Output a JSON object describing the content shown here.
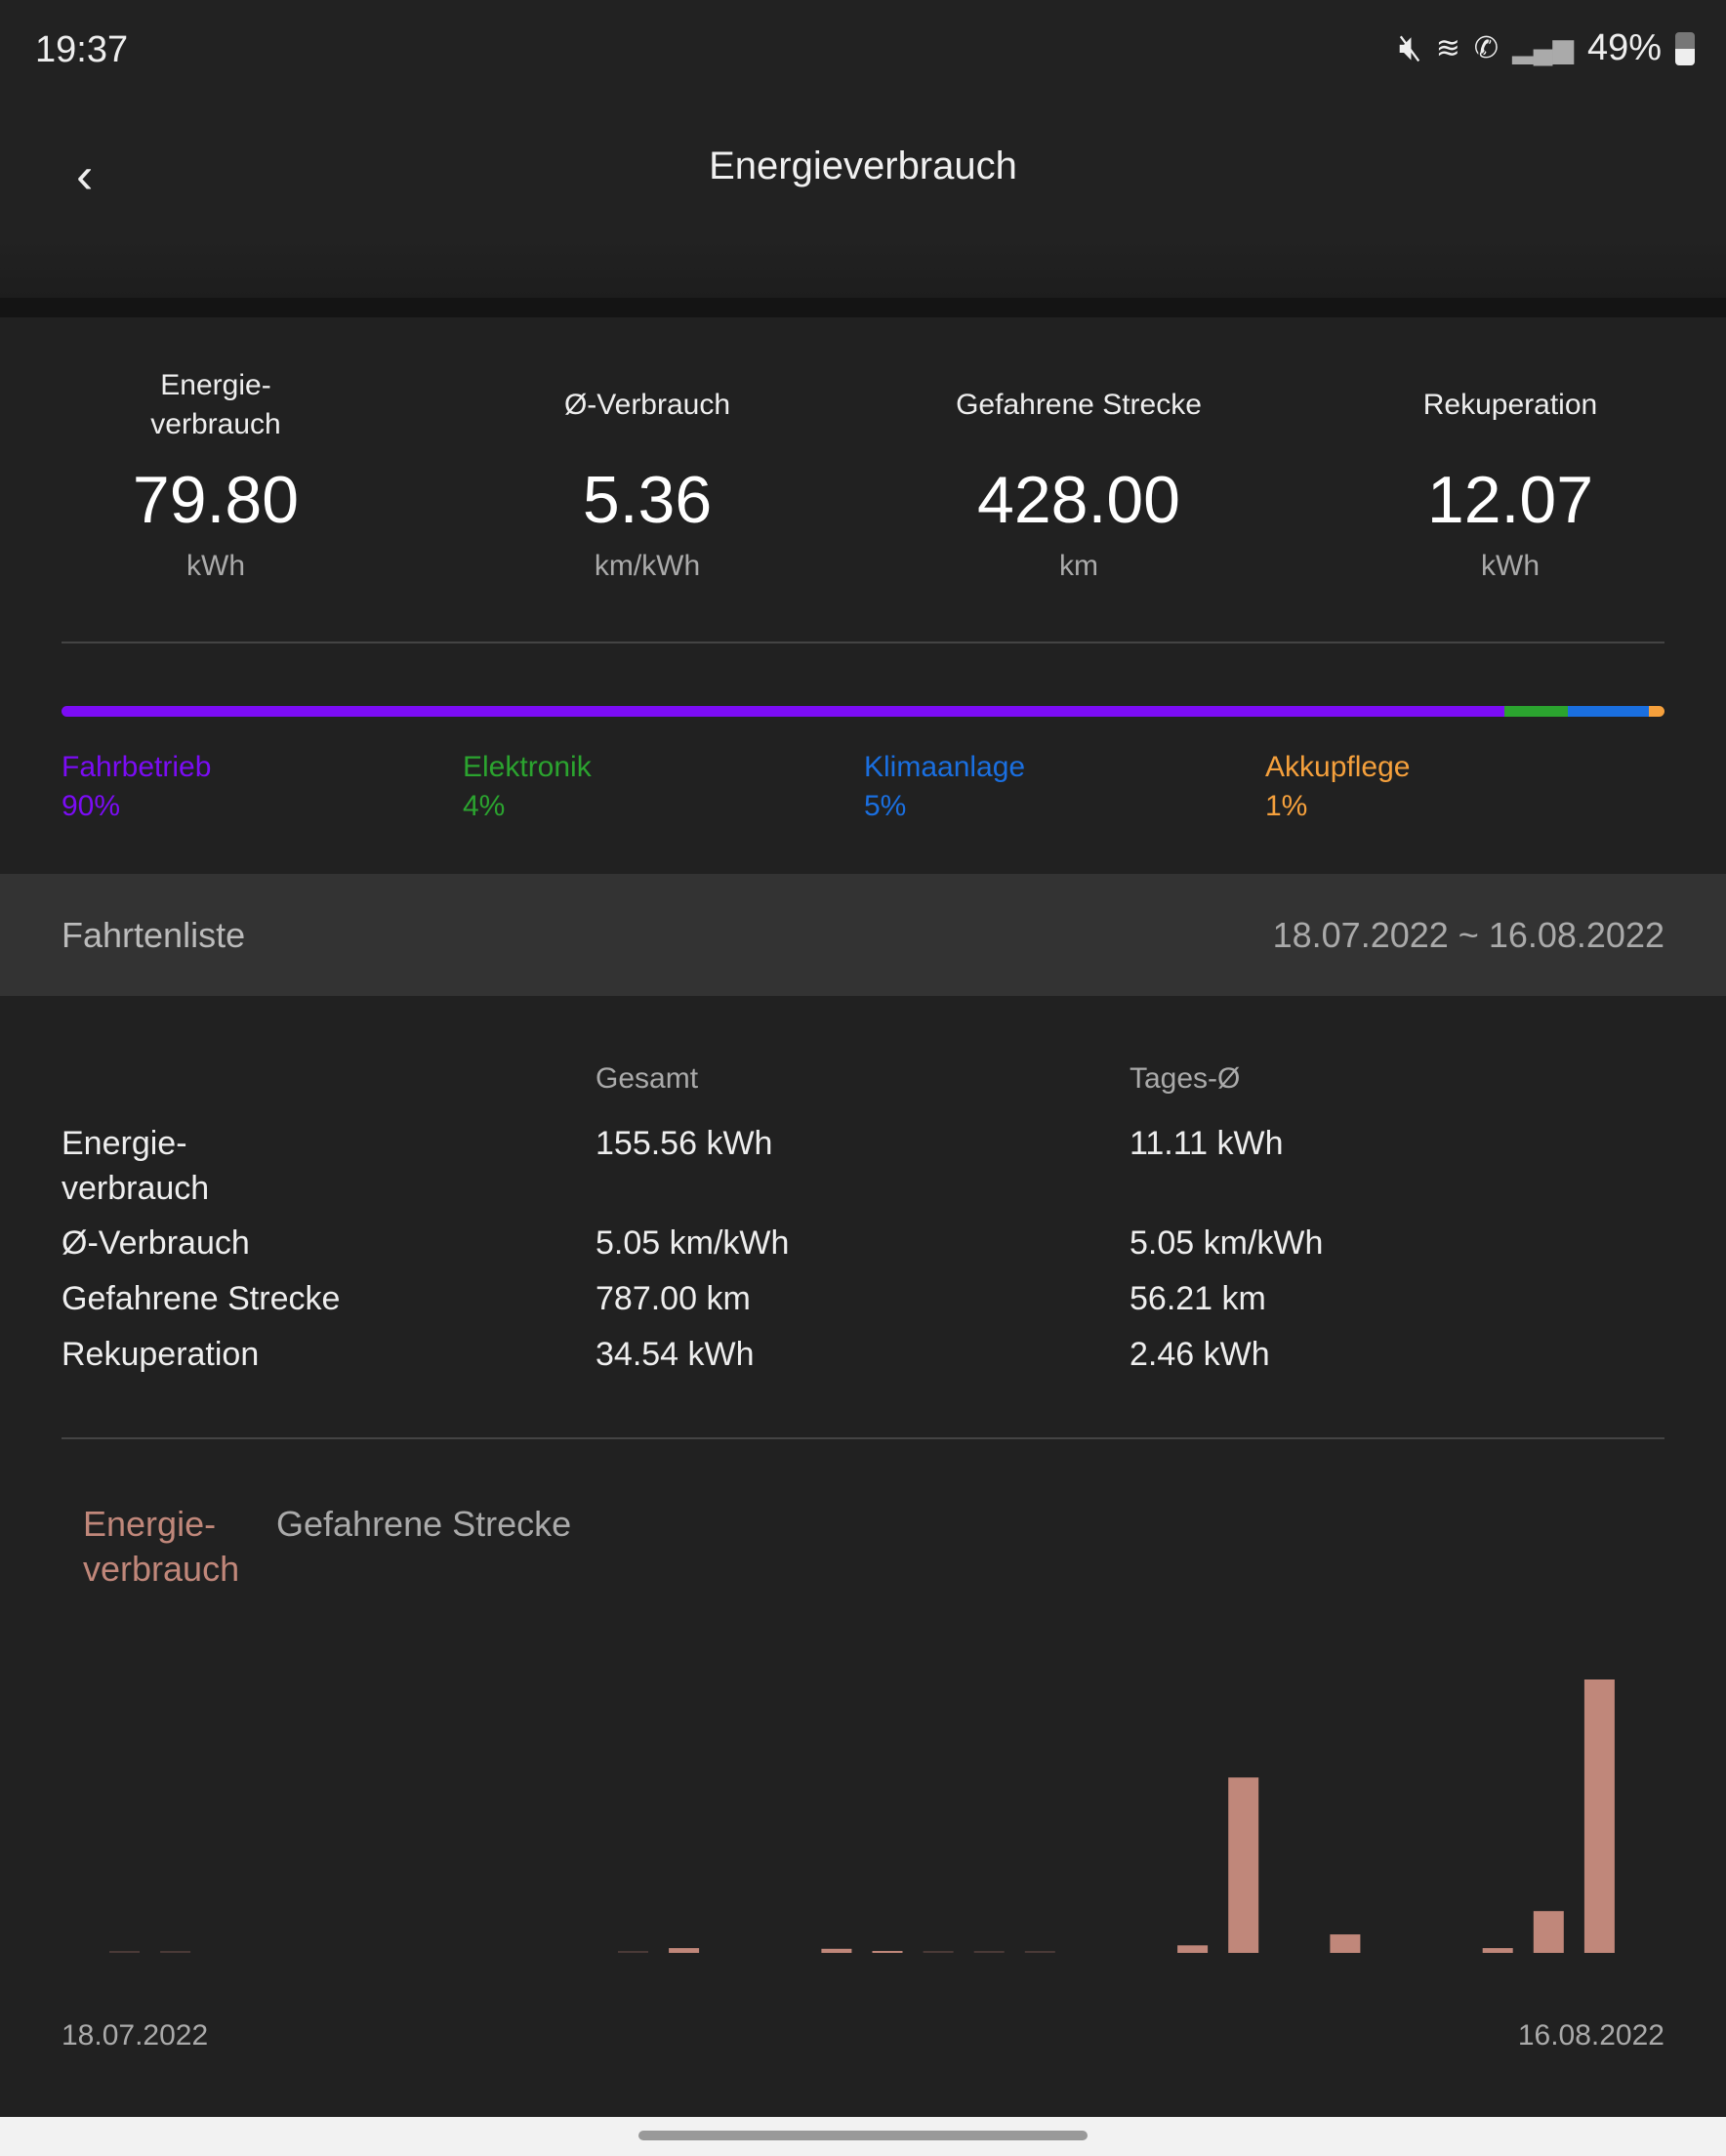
{
  "status": {
    "time": "19:37",
    "battery": "49%",
    "icons": [
      "mute-icon",
      "wifi-icon",
      "wifi-calling-icon",
      "signal-icon",
      "battery-icon"
    ]
  },
  "header": {
    "title": "Energieverbrauch",
    "back_icon": "chevron-left-icon"
  },
  "stats": [
    {
      "label": "Energie-\nverbrauch",
      "value": "79.80",
      "unit": "kWh"
    },
    {
      "label": "Ø-Verbrauch",
      "value": "5.36",
      "unit": "km/kWh"
    },
    {
      "label": "Gefahrene Strecke",
      "value": "428.00",
      "unit": "km"
    },
    {
      "label": "Rekuperation",
      "value": "12.07",
      "unit": "kWh"
    }
  ],
  "breakdown": [
    {
      "label": "Fahrbetrieb",
      "percent": "90%",
      "value": 90,
      "color": "#7b0cf5"
    },
    {
      "label": "Elektronik",
      "percent": "4%",
      "value": 4,
      "color": "#2ba42f"
    },
    {
      "label": "Klimaanlage",
      "percent": "5%",
      "value": 5,
      "color": "#1a6fe0"
    },
    {
      "label": "Akkupflege",
      "percent": "1%",
      "value": 1,
      "color": "#f5a03c"
    }
  ],
  "trips": {
    "title": "Fahrtenliste",
    "range": "18.07.2022 ~ 16.08.2022"
  },
  "summary": {
    "headers": [
      "Gesamt",
      "Tages-Ø"
    ],
    "rows": [
      {
        "label": "Energie-\nverbrauch",
        "total": "155.56 kWh",
        "daily": "11.11 kWh"
      },
      {
        "label": "Ø-Verbrauch",
        "total": "5.05 km/kWh",
        "daily": "5.05 km/kWh"
      },
      {
        "label": "Gefahrene Strecke",
        "total": "787.00 km",
        "daily": "56.21 km"
      },
      {
        "label": "Rekuperation",
        "total": "34.54 kWh",
        "daily": "2.46 kWh"
      }
    ]
  },
  "tabs": [
    {
      "label": "Energie-\nverbrauch",
      "active": true
    },
    {
      "label": "Gefahrene Strecke",
      "active": false
    }
  ],
  "accent": "#c0877a",
  "chart_data": {
    "type": "bar",
    "x_start": "18.07.2022",
    "x_end": "16.08.2022",
    "values": [
      0.1,
      0.1,
      0,
      0,
      0,
      0,
      0,
      0,
      0,
      0,
      0.1,
      1.4,
      0,
      0,
      1.2,
      0.4,
      0.05,
      0.1,
      0.1,
      0,
      0,
      2.2,
      51.2,
      0,
      5.4,
      0,
      0,
      1.4,
      12.2,
      79.8
    ],
    "color": "#c0877a"
  }
}
